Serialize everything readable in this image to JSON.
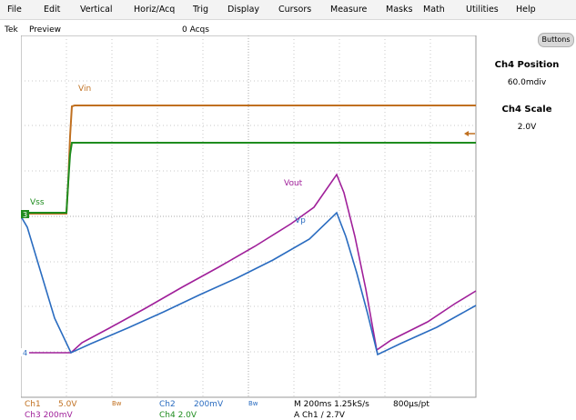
{
  "menu": [
    "File",
    "Edit",
    "Vertical",
    "Horiz/Acq",
    "Trig",
    "Display",
    "Cursors",
    "Measure",
    "Masks",
    "Math",
    "Utilities",
    "Help"
  ],
  "status": {
    "brand": "Tek",
    "mode": "Preview",
    "acqs": "0 Acqs"
  },
  "panel": {
    "buttons_label": "Buttons",
    "ch4_position_title": "Ch4 Position",
    "ch4_position_value": "60.0mdiv",
    "ch4_scale_title": "Ch4 Scale",
    "ch4_scale_value": "2.0V"
  },
  "traces": {
    "vin_label": "Vin",
    "vss_label": "Vss",
    "vout_label": "Vout",
    "vp_label": "Vp",
    "vin_color": "#c07020",
    "vss_color": "#1e8c1e",
    "vout_color": "#a0209a",
    "vp_color": "#2a6cc0"
  },
  "markers": {
    "ch3": "3",
    "ch4": "4"
  },
  "readout": {
    "ch1": "Ch1",
    "ch1_scale": "5.0V",
    "ch1_bw": "Bw",
    "ch2": "Ch2",
    "ch2_scale": "200mV",
    "ch2_bw": "Bw",
    "timebase": "M 200ms 1.25kS/s",
    "pts": "800µs/pt",
    "line2_left": "Ch3   200mV",
    "line2_mid": "Ch4   2.0V",
    "line2_trig": "A  Ch1  ∕  2.7V"
  }
}
